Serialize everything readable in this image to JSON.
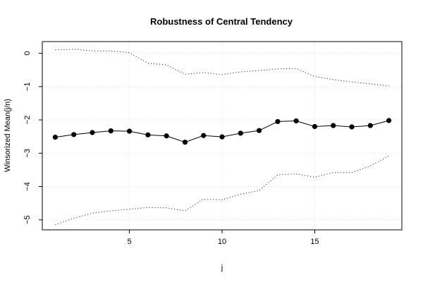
{
  "chart_data": {
    "type": "line",
    "title": "Robustness of Central Tendency",
    "xlabel": "j",
    "ylabel": "Winsorized Mean(j/n)",
    "x": [
      1,
      2,
      3,
      4,
      5,
      6,
      7,
      8,
      9,
      10,
      11,
      12,
      13,
      14,
      15,
      16,
      17,
      18,
      19
    ],
    "xlim": [
      0.3,
      19.7
    ],
    "ylim": [
      -5.3,
      0.35
    ],
    "xticks": [
      5,
      10,
      15
    ],
    "yticks": [
      0,
      -1,
      -2,
      -3,
      -4,
      -5
    ],
    "grid": true,
    "series": [
      {
        "role": "mean",
        "style": "line-with-points",
        "values": [
          -2.52,
          -2.44,
          -2.38,
          -2.33,
          -2.34,
          -2.45,
          -2.48,
          -2.67,
          -2.47,
          -2.51,
          -2.4,
          -2.32,
          -2.05,
          -2.03,
          -2.2,
          -2.17,
          -2.21,
          -2.17,
          -2.02
        ]
      },
      {
        "role": "upper-bound",
        "style": "dotted",
        "values": [
          0.1,
          0.12,
          0.07,
          0.07,
          0.02,
          -0.3,
          -0.35,
          -0.63,
          -0.58,
          -0.64,
          -0.56,
          -0.52,
          -0.47,
          -0.46,
          -0.7,
          -0.79,
          -0.86,
          -0.92,
          -0.98
        ]
      },
      {
        "role": "lower-bound",
        "style": "dotted",
        "values": [
          -5.15,
          -4.95,
          -4.8,
          -4.73,
          -4.68,
          -4.63,
          -4.64,
          -4.73,
          -4.38,
          -4.4,
          -4.23,
          -4.12,
          -3.65,
          -3.62,
          -3.72,
          -3.58,
          -3.58,
          -3.38,
          -3.08
        ]
      }
    ]
  }
}
